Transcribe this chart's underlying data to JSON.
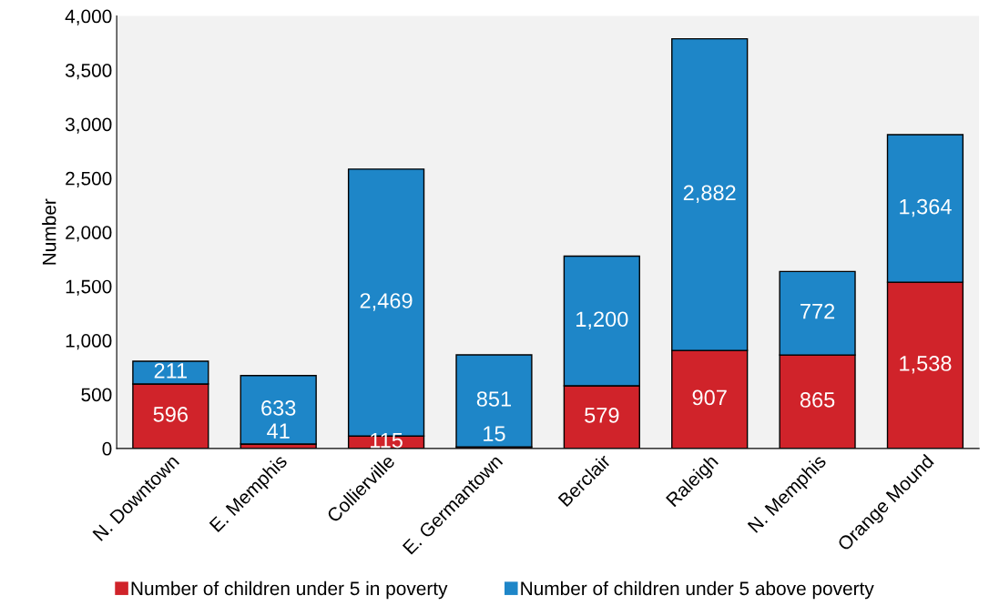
{
  "chart_data": {
    "type": "bar",
    "stacked": true,
    "ylabel": "Number",
    "categories": [
      "N. Downtown",
      "E. Memphis",
      "Collierville",
      "E. Germantown",
      "Berclair",
      "Raleigh",
      "N. Memphis",
      "Orange Mound"
    ],
    "series": [
      {
        "name": "Number of children under 5 in poverty",
        "color": "#d0232a",
        "values": [
          596,
          41,
          115,
          15,
          579,
          907,
          865,
          1538
        ],
        "value_labels": [
          "596",
          "41",
          "115",
          "15",
          "579",
          "907",
          "865",
          "1,538"
        ]
      },
      {
        "name": "Number of children under 5 above poverty",
        "color": "#1e86c8",
        "values": [
          211,
          633,
          2469,
          851,
          1200,
          2882,
          772,
          1364
        ],
        "value_labels": [
          "211",
          "633",
          "2,469",
          "851",
          "1,200",
          "2,882",
          "772",
          "1,364"
        ]
      }
    ],
    "ylim": [
      0,
      4000
    ],
    "yticks": [
      0,
      500,
      {
        "value": 1000,
        "label": "1,000"
      },
      {
        "value": 1500,
        "label": "1,500"
      },
      {
        "value": 2000,
        "label": "2,000"
      },
      {
        "value": 2500,
        "label": "2,500"
      },
      {
        "value": 3000,
        "label": "3,000"
      },
      {
        "value": 3500,
        "label": "3,500"
      },
      {
        "value": 4000,
        "label": "4,000"
      }
    ],
    "grid": false,
    "legend": "bottom"
  }
}
